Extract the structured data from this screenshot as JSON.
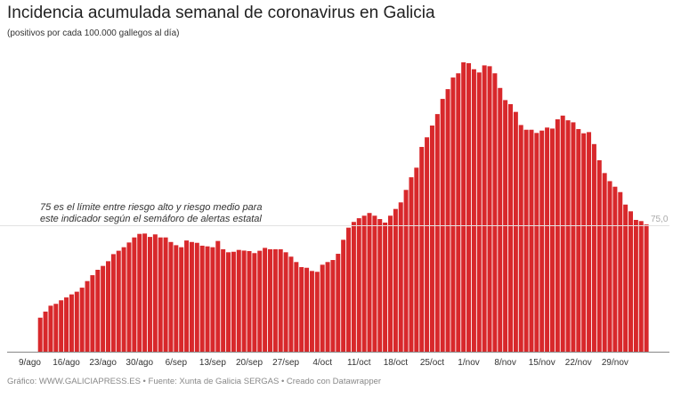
{
  "header": {
    "title": "Incidencia acumulada semanal de coronavirus en Galicia",
    "subtitle": "(positivos por cada 100.000 gallegos al día)"
  },
  "footer": {
    "text": "Gráfico: WWW.GALICIAPRESS.ES • Fuente: Xunta de Galicia SERGAS • Creado con Datawrapper"
  },
  "chart_data": {
    "type": "bar",
    "title": "Incidencia acumulada semanal de coronavirus en Galicia",
    "subtitle": "(positivos por cada 100.000 gallegos al día)",
    "xlabel": "",
    "ylabel": "",
    "ylim": [
      0,
      180
    ],
    "grid": false,
    "bar_color": "#d8282b",
    "categories": [
      "11/ago",
      "12/ago",
      "13/ago",
      "14/ago",
      "15/ago",
      "16/ago",
      "17/ago",
      "18/ago",
      "19/ago",
      "20/ago",
      "21/ago",
      "22/ago",
      "23/ago",
      "24/ago",
      "25/ago",
      "26/ago",
      "27/ago",
      "28/ago",
      "29/ago",
      "30/ago",
      "31/ago",
      "1/sep",
      "2/sep",
      "3/sep",
      "4/sep",
      "5/sep",
      "6/sep",
      "7/sep",
      "8/sep",
      "9/sep",
      "10/sep",
      "11/sep",
      "12/sep",
      "13/sep",
      "14/sep",
      "15/sep",
      "16/sep",
      "17/sep",
      "18/sep",
      "19/sep",
      "20/sep",
      "21/sep",
      "22/sep",
      "23/sep",
      "24/sep",
      "25/sep",
      "26/sep",
      "27/sep",
      "28/sep",
      "29/sep",
      "30/sep",
      "1/oct",
      "2/oct",
      "3/oct",
      "4/oct",
      "5/oct",
      "6/oct",
      "7/oct",
      "8/oct",
      "9/oct",
      "10/oct",
      "11/oct",
      "12/oct",
      "13/oct",
      "14/oct",
      "15/oct",
      "16/oct",
      "17/oct",
      "18/oct",
      "19/oct",
      "20/oct",
      "21/oct",
      "22/oct",
      "23/oct",
      "24/oct",
      "25/oct",
      "26/oct",
      "27/oct",
      "28/oct",
      "29/oct",
      "30/oct",
      "31/oct",
      "1/nov",
      "2/nov",
      "3/nov",
      "4/nov",
      "5/nov",
      "6/nov",
      "7/nov",
      "8/nov",
      "9/nov",
      "10/nov",
      "11/nov",
      "12/nov",
      "13/nov",
      "14/nov",
      "15/nov",
      "16/nov",
      "17/nov",
      "18/nov",
      "19/nov",
      "20/nov",
      "21/nov",
      "22/nov",
      "23/nov",
      "24/nov",
      "25/nov",
      "26/nov",
      "27/nov",
      "28/nov",
      "29/nov",
      "30/nov",
      "1/dic",
      "2/dic",
      "3/dic",
      "4/dic",
      "5/dic"
    ],
    "values": [
      20.2,
      23.8,
      27.3,
      28.4,
      30.5,
      32.2,
      34.0,
      35.6,
      38.0,
      41.9,
      45.4,
      48.6,
      50.9,
      53.7,
      57.9,
      59.9,
      62.0,
      64.8,
      67.8,
      69.9,
      70.1,
      68.1,
      69.6,
      67.8,
      67.8,
      65.1,
      63.2,
      62.0,
      66.0,
      65.1,
      64.6,
      62.9,
      62.5,
      62.0,
      65.7,
      60.8,
      59.0,
      59.3,
      60.4,
      60.0,
      59.7,
      58.5,
      59.9,
      61.6,
      60.8,
      60.8,
      60.8,
      59.0,
      56.4,
      53.2,
      50.2,
      49.8,
      47.9,
      47.4,
      51.6,
      53.2,
      54.4,
      58.1,
      66.4,
      73.6,
      77.0,
      79.2,
      80.7,
      82.3,
      80.7,
      78.7,
      76.6,
      80.7,
      84.7,
      88.6,
      96.0,
      103.5,
      109.2,
      121.5,
      127.2,
      134.2,
      141.0,
      150.0,
      155.8,
      162.7,
      165.2,
      171.7,
      171.2,
      167.6,
      165.7,
      169.9,
      169.4,
      165.2,
      156.5,
      149.3,
      146.9,
      142.3,
      134.5,
      131.7,
      131.7,
      129.8,
      131.2,
      133.0,
      132.4,
      137.9,
      140.1,
      137.3,
      136.1,
      132.1,
      129.6,
      130.3,
      123.2,
      113.6,
      106.0,
      101.2,
      97.9,
      94.7,
      87.3,
      83.3,
      78.2,
      77.5,
      75.5
    ],
    "x_tick_labels": [
      "9/ago",
      "16/ago",
      "23/ago",
      "30/ago",
      "6/sep",
      "13/sep",
      "20/sep",
      "27/sep",
      "4/oct",
      "11/oct",
      "18/oct",
      "25/oct",
      "1/nov",
      "8/nov",
      "15/nov",
      "22/nov",
      "29/nov"
    ],
    "reference_line": {
      "value": 75,
      "label": "75,0",
      "annotation": [
        "75 es el límite entre riesgo alto y riesgo medio para",
        "este indicador según el semáforo de alertas estatal"
      ]
    }
  }
}
